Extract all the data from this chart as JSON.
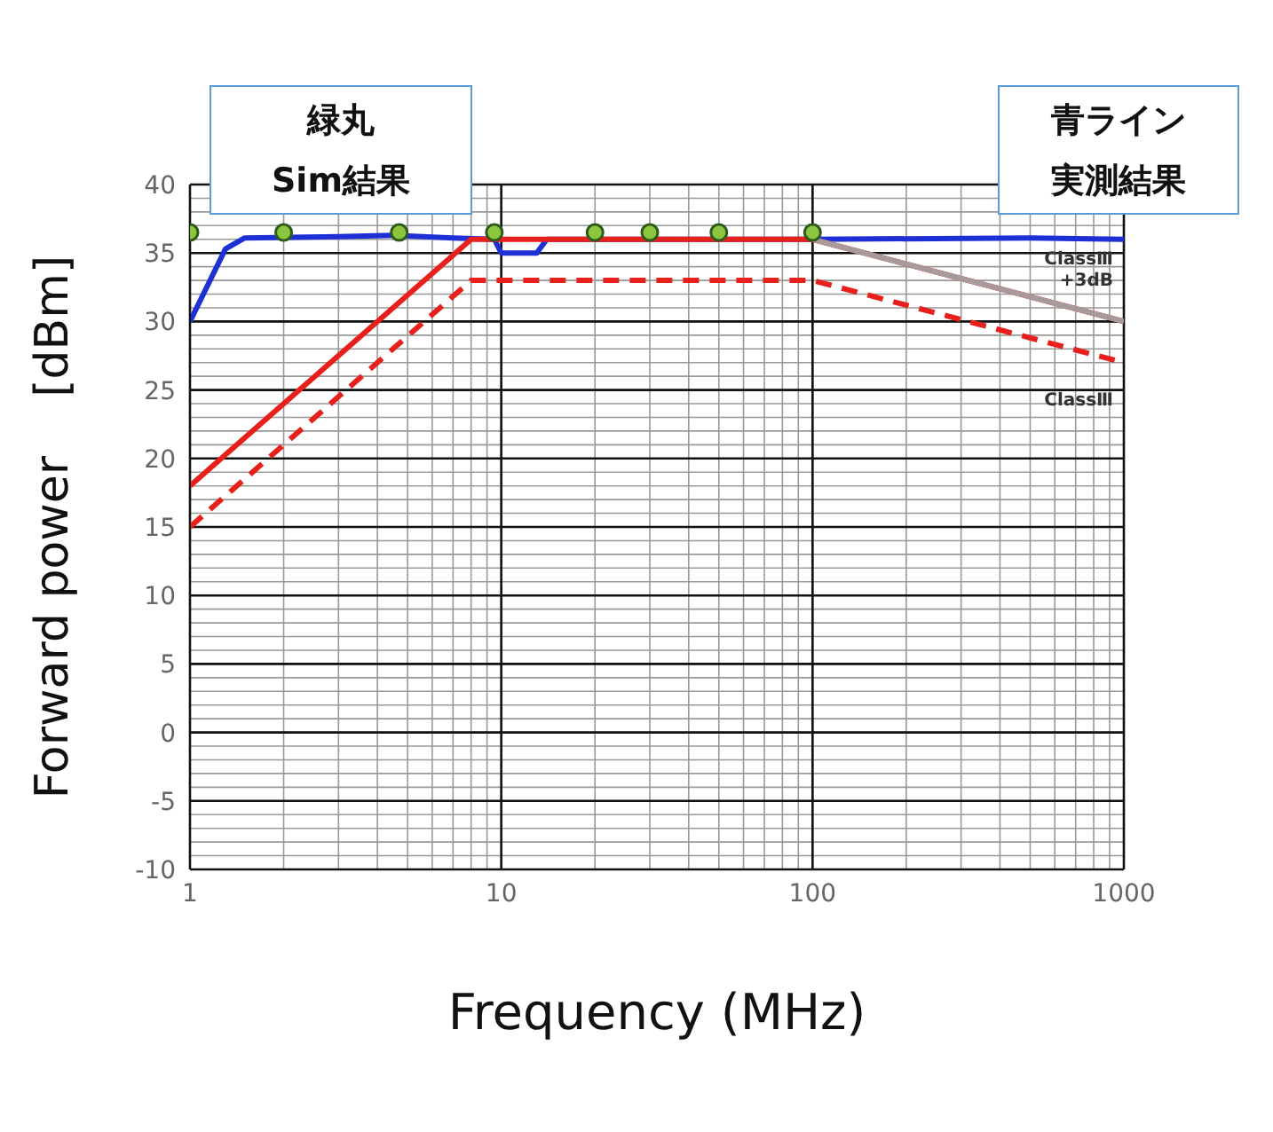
{
  "chart_data": {
    "type": "line",
    "xlabel": "Frequency (MHz)",
    "ylabel": "Forward power    [dBm]",
    "log": "x",
    "grid": true,
    "xlim": [
      1,
      1000
    ],
    "xticks": [
      1,
      10,
      100,
      1000
    ],
    "ylim": [
      -10,
      40
    ],
    "yticks": [
      -10,
      -5,
      0,
      5,
      10,
      15,
      20,
      25,
      30,
      35,
      40
    ],
    "annotations": [
      "緑丸",
      "Sim結果",
      "青ライン",
      "実測結果"
    ],
    "series": [
      {
        "color": "#1f2fd6",
        "marker": "none",
        "x": [
          1,
          1.3,
          1.5,
          3,
          4.5,
          7,
          9.5,
          10,
          13,
          14,
          30,
          100,
          500,
          1000
        ],
        "values": [
          30,
          35.3,
          36.1,
          36.2,
          36.3,
          36.1,
          36,
          35,
          35,
          36,
          36,
          36,
          36.1,
          36
        ]
      },
      {
        "name": "ClassⅢ\n+3dB",
        "color": "#e8201c",
        "marker": "none",
        "x": [
          1,
          8,
          100,
          1000
        ],
        "values": [
          18,
          36,
          36,
          30
        ]
      },
      {
        "color": "#a89a9a",
        "marker": "none",
        "x": [
          100,
          1000
        ],
        "values": [
          36,
          30
        ]
      },
      {
        "name": "ClassⅢ",
        "color": "#e8201c",
        "marker": "none",
        "line_style": "dashed",
        "x": [
          1,
          8,
          100,
          1000
        ],
        "values": [
          15,
          33,
          33,
          27
        ]
      },
      {
        "type": "scatter",
        "color": "#8cc63f",
        "marker": "circle",
        "x": [
          1,
          2,
          4.7,
          9.5,
          20,
          30,
          50,
          100
        ],
        "values": [
          36.5,
          36.5,
          36.5,
          36.5,
          36.5,
          36.5,
          36.5,
          36.5
        ]
      }
    ]
  }
}
